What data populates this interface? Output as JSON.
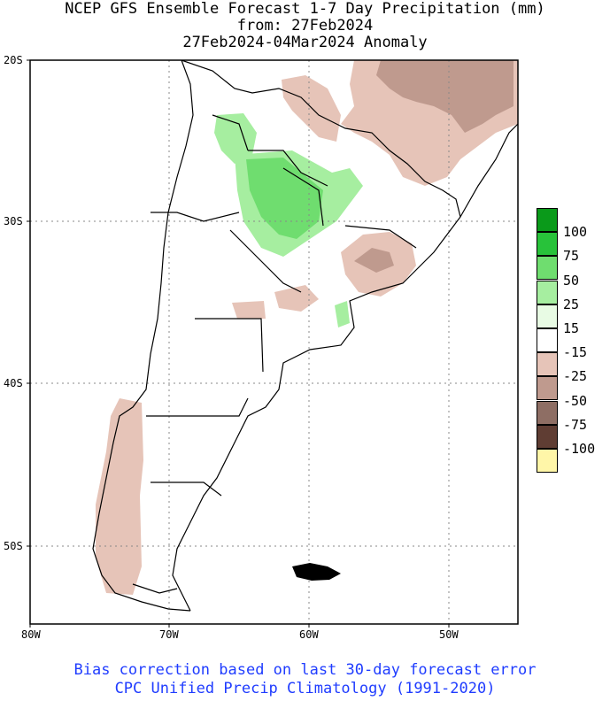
{
  "titles": {
    "line1": "NCEP GFS Ensemble Forecast 1-7 Day Precipitation (mm)",
    "line2": "from: 27Feb2024",
    "line3": "27Feb2024-04Mar2024 Anomaly"
  },
  "axes": {
    "lat_labels": [
      "20S",
      "30S",
      "40S",
      "50S"
    ],
    "lon_labels": [
      "80W",
      "70W",
      "60W",
      "50W"
    ]
  },
  "legend": {
    "labels": [
      "100",
      "75",
      "50",
      "25",
      "15",
      "-15",
      "-25",
      "-50",
      "-75",
      "-100"
    ],
    "colors": [
      "#0a9a1a",
      "#28c23a",
      "#6fdd6f",
      "#a6eea0",
      "#e8fbe4",
      "#ffffff",
      "#e6c4b8",
      "#bf9a8e",
      "#8e6e64",
      "#5f3d33",
      "#fff6a8"
    ]
  },
  "footer": {
    "line1": "Bias correction based on last 30-day forecast error",
    "line2": "CPC Unified Precip Climatology (1991-2020)"
  },
  "colors": {
    "dry_light": "#e6c4b8",
    "dry_medium": "#bf9a8e",
    "wet_light": "#a6eea0",
    "wet_medium": "#6fdd6f",
    "footer_text": "#1f3cff"
  }
}
